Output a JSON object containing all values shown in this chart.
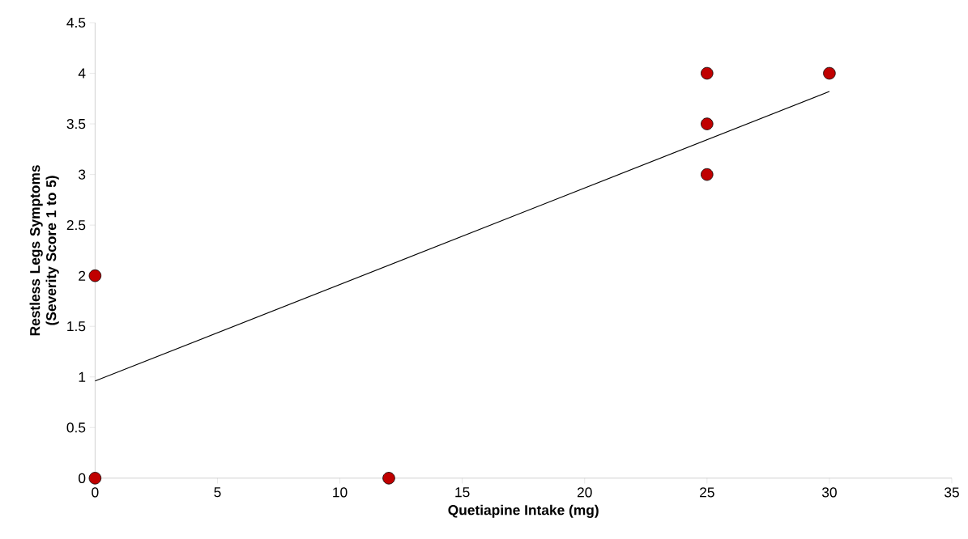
{
  "chart_data": {
    "type": "scatter",
    "xlabel": "Quetiapine Intake (mg)",
    "ylabel": "Restless Legs Symptoms (Severity Score 1 to 5)",
    "xlim": [
      0,
      35
    ],
    "ylim": [
      0,
      4.5
    ],
    "xticks": [
      0,
      5,
      10,
      15,
      20,
      25,
      30,
      35
    ],
    "yticks": [
      0,
      0.5,
      1,
      1.5,
      2,
      2.5,
      3,
      3.5,
      4,
      4.5
    ],
    "marker": "circle",
    "series": [
      {
        "color": "#c00000",
        "x": [
          0,
          0,
          12,
          25,
          25,
          25,
          30
        ],
        "values": [
          0,
          2,
          0,
          3,
          3.5,
          4,
          4
        ]
      },
      {
        "type": "line",
        "color": "#000000",
        "marker": "none",
        "line_style": "solid",
        "x": [
          0,
          30
        ],
        "values": [
          0.96,
          3.82
        ]
      }
    ]
  }
}
